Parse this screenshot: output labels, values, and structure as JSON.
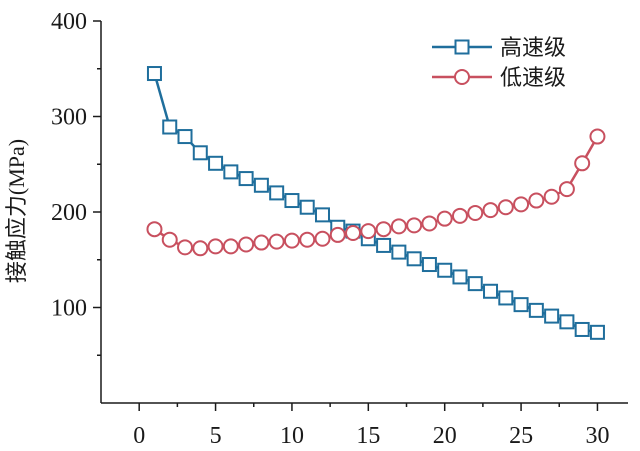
{
  "chart_data": {
    "type": "line",
    "ylabel": "接触应力(MPa)",
    "xlabel": "",
    "xlim": [
      -2.5,
      32
    ],
    "ylim": [
      0,
      400
    ],
    "x_ticks": [
      0,
      5,
      10,
      15,
      20,
      25,
      30
    ],
    "y_ticks": [
      100,
      200,
      300,
      400
    ],
    "grid": false,
    "legend_position": "top-right",
    "x": [
      1,
      2,
      3,
      4,
      5,
      6,
      7,
      8,
      9,
      10,
      11,
      12,
      13,
      14,
      15,
      16,
      17,
      18,
      19,
      20,
      21,
      22,
      23,
      24,
      25,
      26,
      27,
      28,
      29,
      30
    ],
    "series": [
      {
        "name": "高速级",
        "color": "#1f6e9c",
        "marker": "square",
        "values": [
          345,
          289,
          279,
          262,
          251,
          242,
          235,
          228,
          220,
          212,
          205,
          197,
          184,
          180,
          172,
          165,
          158,
          151,
          145,
          139,
          132,
          125,
          117,
          110,
          103,
          97,
          91,
          85,
          77,
          74
        ]
      },
      {
        "name": "低速级",
        "color": "#c8505f",
        "marker": "circle",
        "values": [
          182,
          171,
          163,
          162,
          164,
          164,
          166,
          168,
          169,
          170,
          171,
          172,
          176,
          178,
          180,
          182,
          185,
          186,
          188,
          193,
          196,
          199,
          202,
          205,
          208,
          212,
          216,
          224,
          251,
          279
        ]
      }
    ]
  }
}
